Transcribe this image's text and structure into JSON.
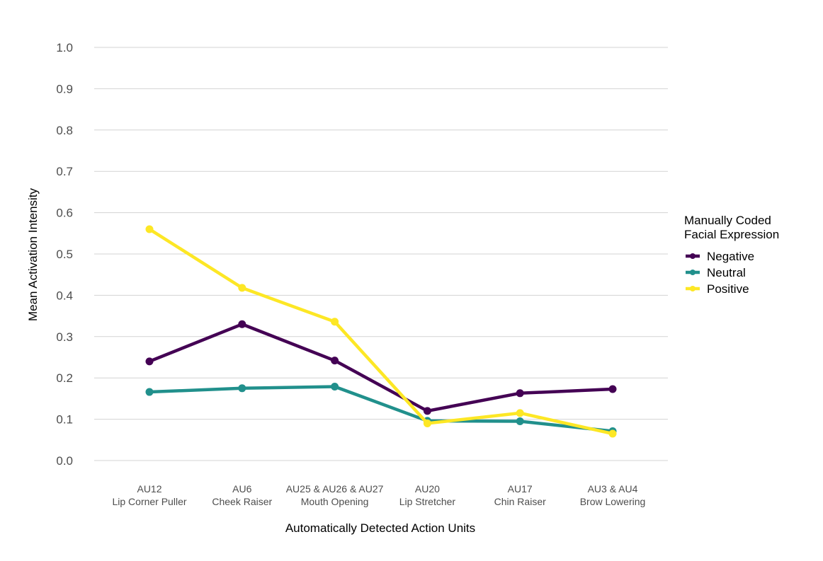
{
  "chart_data": {
    "type": "line",
    "categories": [
      [
        "AU12",
        "Lip Corner Puller"
      ],
      [
        "AU6",
        "Cheek Raiser"
      ],
      [
        "AU25 & AU26 & AU27",
        "Mouth Opening"
      ],
      [
        "AU20",
        "Lip Stretcher"
      ],
      [
        "AU17",
        "Chin Raiser"
      ],
      [
        "AU3 & AU4",
        "Brow Lowering"
      ]
    ],
    "series": [
      {
        "name": "Negative",
        "color": "#440154",
        "values": [
          0.24,
          0.33,
          0.242,
          0.12,
          0.163,
          0.173
        ]
      },
      {
        "name": "Neutral",
        "color": "#21908c",
        "values": [
          0.166,
          0.175,
          0.179,
          0.096,
          0.095,
          0.071
        ]
      },
      {
        "name": "Positive",
        "color": "#fde725",
        "values": [
          0.56,
          0.418,
          0.336,
          0.09,
          0.115,
          0.065
        ]
      }
    ],
    "xlabel": "Automatically Detected Action Units",
    "ylabel": "Mean Activation Intensity",
    "ylim": [
      0,
      1
    ],
    "yticks": [
      "0.0",
      "0.1",
      "0.2",
      "0.3",
      "0.4",
      "0.5",
      "0.6",
      "0.7",
      "0.8",
      "0.9",
      "1.0"
    ],
    "grid": true,
    "legend": {
      "title": [
        "Manually Coded",
        "Facial Expression"
      ],
      "placement": "right"
    }
  }
}
